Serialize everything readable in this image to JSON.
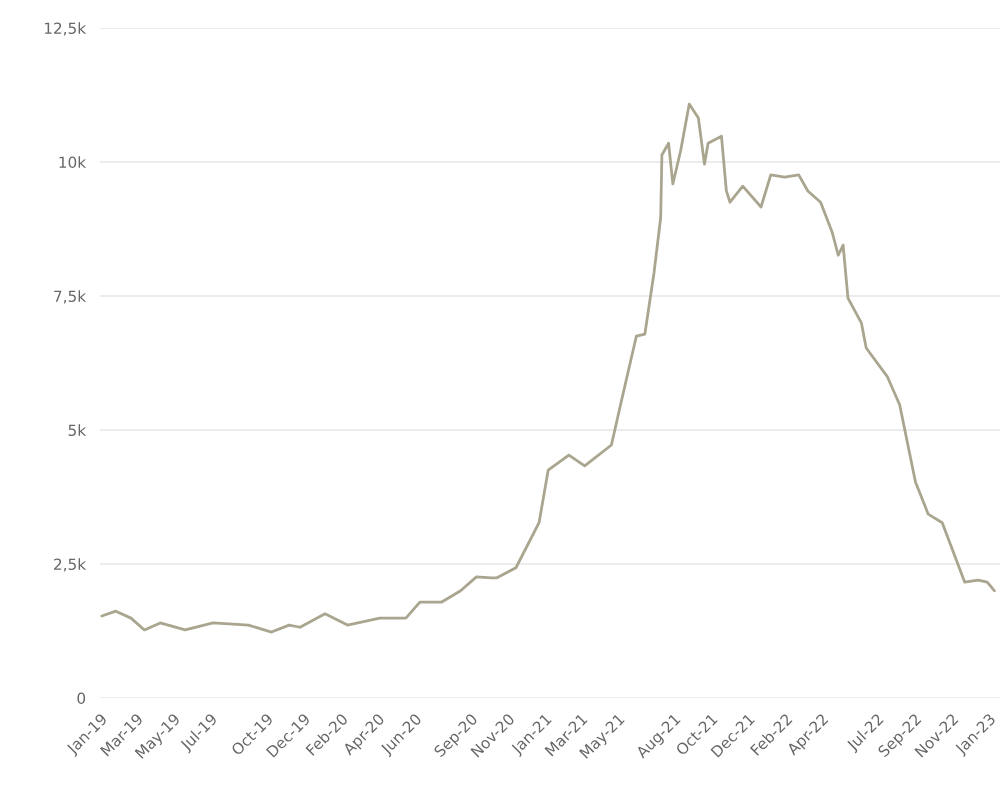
{
  "chart_data": {
    "type": "line",
    "x": [
      "2019-01-04",
      "2019-01-27",
      "2019-02-21",
      "2019-03-15",
      "2019-04-10",
      "2019-05-21",
      "2019-07-06",
      "2019-09-02",
      "2019-10-10",
      "2019-11-08",
      "2019-11-26",
      "2020-01-06",
      "2020-02-12",
      "2020-04-05",
      "2020-05-18",
      "2020-06-10",
      "2020-07-16",
      "2020-08-16",
      "2020-09-11",
      "2020-10-06",
      "2020-10-14",
      "2020-11-15",
      "2020-12-23",
      "2021-01-07",
      "2021-02-10",
      "2021-03-08",
      "2021-04-21",
      "2021-05-06",
      "2021-06-01",
      "2021-06-15",
      "2021-06-30",
      "2021-07-11",
      "2021-07-13",
      "2021-07-24",
      "2021-07-31",
      "2021-08-13",
      "2021-08-27",
      "2021-09-11",
      "2021-09-21",
      "2021-09-27",
      "2021-10-19",
      "2021-10-27",
      "2021-11-02",
      "2021-11-23",
      "2021-12-23",
      "2022-01-08",
      "2022-01-31",
      "2022-02-23",
      "2022-03-10",
      "2022-03-31",
      "2022-04-19",
      "2022-04-29",
      "2022-05-07",
      "2022-05-15",
      "2022-06-06",
      "2022-06-14",
      "2022-07-19",
      "2022-08-08",
      "2022-09-03",
      "2022-09-24",
      "2022-10-17",
      "2022-11-23",
      "2022-12-15",
      "2022-12-30",
      "2023-01-11"
    ],
    "series": [
      {
        "color": "#a9a58e",
        "values": [
          1530,
          1620,
          1490,
          1270,
          1400,
          1270,
          1400,
          1360,
          1230,
          1360,
          1320,
          1570,
          1360,
          1490,
          1490,
          1790,
          1790,
          2000,
          2260,
          2240,
          2240,
          2430,
          3270,
          4250,
          4530,
          4330,
          4720,
          5470,
          6750,
          6790,
          7930,
          8960,
          10130,
          10350,
          9590,
          10220,
          11080,
          10820,
          9960,
          10350,
          10480,
          9460,
          9250,
          9550,
          9160,
          9760,
          9720,
          9760,
          9460,
          9250,
          8690,
          8260,
          8450,
          7460,
          7000,
          6530,
          5990,
          5470,
          4030,
          3430,
          3270,
          2160,
          2200,
          2160,
          2000
        ]
      }
    ],
    "xlim": [
      "2019-01-01",
      "2023-01-20"
    ],
    "xticks": [
      {
        "value": "2019-01-01",
        "label": "Jan-19"
      },
      {
        "value": "2019-03-01",
        "label": "Mar-19"
      },
      {
        "value": "2019-05-01",
        "label": "May-19"
      },
      {
        "value": "2019-07-01",
        "label": "Jul-19"
      },
      {
        "value": "2019-10-01",
        "label": "Oct-19"
      },
      {
        "value": "2019-12-01",
        "label": "Dec-19"
      },
      {
        "value": "2020-02-01",
        "label": "Feb-20"
      },
      {
        "value": "2020-04-01",
        "label": "Apr-20"
      },
      {
        "value": "2020-06-01",
        "label": "Jun-20"
      },
      {
        "value": "2020-09-01",
        "label": "Sep-20"
      },
      {
        "value": "2020-11-01",
        "label": "Nov-20"
      },
      {
        "value": "2021-01-01",
        "label": "Jan-21"
      },
      {
        "value": "2021-03-01",
        "label": "Mar-21"
      },
      {
        "value": "2021-05-01",
        "label": "May-21"
      },
      {
        "value": "2021-08-01",
        "label": "Aug-21"
      },
      {
        "value": "2021-10-01",
        "label": "Oct-21"
      },
      {
        "value": "2021-12-01",
        "label": "Dec-21"
      },
      {
        "value": "2022-02-01",
        "label": "Feb-22"
      },
      {
        "value": "2022-04-01",
        "label": "Apr-22"
      },
      {
        "value": "2022-07-01",
        "label": "Jul-22"
      },
      {
        "value": "2022-09-01",
        "label": "Sep-22"
      },
      {
        "value": "2022-11-01",
        "label": "Nov-22"
      },
      {
        "value": "2023-01-01",
        "label": "Jan-23"
      }
    ],
    "ylim": [
      0,
      12500
    ],
    "yticks": [
      0,
      {
        "value": 2500,
        "label": "2,5k"
      },
      {
        "value": 5000,
        "label": "5k"
      },
      {
        "value": 7500,
        "label": "7,5k"
      },
      {
        "value": 10000,
        "label": "10k"
      },
      {
        "value": 12500,
        "label": "12,5k"
      }
    ],
    "grid": "y",
    "legend": false,
    "marker": "none",
    "line_style": "solid"
  }
}
